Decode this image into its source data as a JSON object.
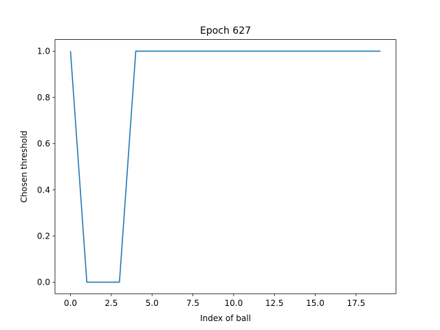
{
  "chart_data": {
    "type": "line",
    "title": "Epoch 627",
    "xlabel": "Index of ball",
    "ylabel": "Chosen threshold",
    "xlim": [
      -0.95,
      19.95
    ],
    "ylim": [
      -0.05,
      1.05
    ],
    "x_ticks": [
      0.0,
      2.5,
      5.0,
      7.5,
      10.0,
      12.5,
      15.0,
      17.5
    ],
    "x_tick_labels": [
      "0.0",
      "2.5",
      "5.0",
      "7.5",
      "10.0",
      "12.5",
      "15.0",
      "17.5"
    ],
    "y_ticks": [
      0.0,
      0.2,
      0.4,
      0.6,
      0.8,
      1.0
    ],
    "y_tick_labels": [
      "0.0",
      "0.2",
      "0.4",
      "0.6",
      "0.8",
      "1.0"
    ],
    "grid": false,
    "series": [
      {
        "color": "#1f77b4",
        "x": [
          0,
          1,
          2,
          3,
          4,
          5,
          6,
          7,
          8,
          9,
          10,
          11,
          12,
          13,
          14,
          15,
          16,
          17,
          18,
          19
        ],
        "y": [
          1.0,
          0.0,
          0.0,
          0.0,
          1.0,
          1.0,
          1.0,
          1.0,
          1.0,
          1.0,
          1.0,
          1.0,
          1.0,
          1.0,
          1.0,
          1.0,
          1.0,
          1.0,
          1.0,
          1.0
        ]
      }
    ]
  }
}
